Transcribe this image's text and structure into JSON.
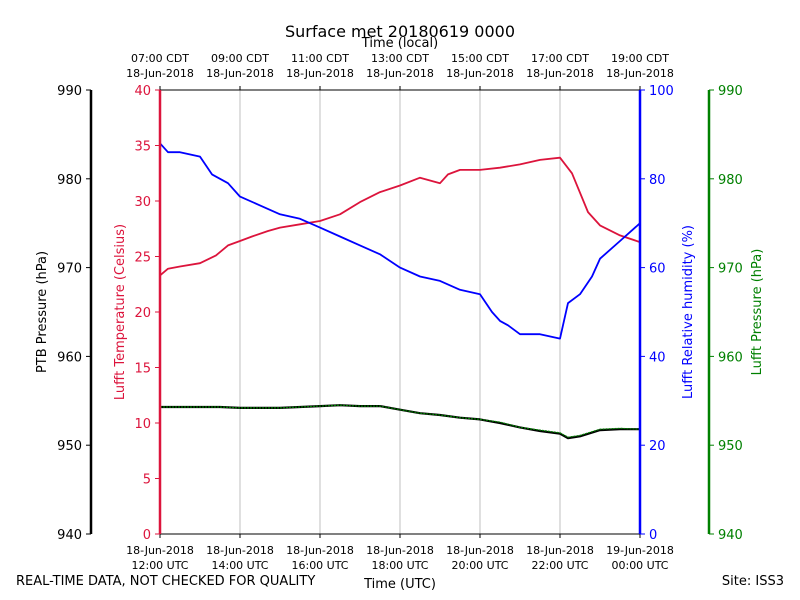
{
  "chart_data": {
    "type": "line",
    "title": "Surface met 20180619 0000",
    "top_axis_label": "Time (local)",
    "xlabel": "Time (UTC)",
    "x_range_hours_utc": [
      12,
      24
    ],
    "x_ticks_utc": [
      {
        "hour": 12,
        "line1": "18-Jun-2018",
        "line2": "12:00 UTC"
      },
      {
        "hour": 14,
        "line1": "18-Jun-2018",
        "line2": "14:00 UTC"
      },
      {
        "hour": 16,
        "line1": "18-Jun-2018",
        "line2": "16:00 UTC"
      },
      {
        "hour": 18,
        "line1": "18-Jun-2018",
        "line2": "18:00 UTC"
      },
      {
        "hour": 20,
        "line1": "18-Jun-2018",
        "line2": "20:00 UTC"
      },
      {
        "hour": 22,
        "line1": "18-Jun-2018",
        "line2": "22:00 UTC"
      },
      {
        "hour": 24,
        "line1": "19-Jun-2018",
        "line2": "00:00 UTC"
      }
    ],
    "x_ticks_local": [
      {
        "hour": 12,
        "line1": "07:00 CDT",
        "line2": "18-Jun-2018"
      },
      {
        "hour": 14,
        "line1": "09:00 CDT",
        "line2": "18-Jun-2018"
      },
      {
        "hour": 16,
        "line1": "11:00 CDT",
        "line2": "18-Jun-2018"
      },
      {
        "hour": 18,
        "line1": "13:00 CDT",
        "line2": "18-Jun-2018"
      },
      {
        "hour": 20,
        "line1": "15:00 CDT",
        "line2": "18-Jun-2018"
      },
      {
        "hour": 22,
        "line1": "17:00 CDT",
        "line2": "18-Jun-2018"
      },
      {
        "hour": 24,
        "line1": "19:00 CDT",
        "line2": "18-Jun-2018"
      }
    ],
    "grid": "vertical lines at x ticks",
    "axes": {
      "ptb_pressure": {
        "label": "PTB Pressure (hPa)",
        "range": [
          940,
          990
        ],
        "ticks": [
          940,
          950,
          960,
          970,
          980,
          990
        ],
        "color": "#000000",
        "side": "left-outer"
      },
      "temperature": {
        "label": "Lufft Temperature (Celsius)",
        "range": [
          0,
          40
        ],
        "ticks": [
          0,
          5,
          10,
          15,
          20,
          25,
          30,
          35,
          40
        ],
        "color": "#dc143c",
        "side": "left-inner"
      },
      "humidity": {
        "label": "Lufft Relative humidity (%)",
        "range": [
          0,
          100
        ],
        "ticks": [
          0,
          20,
          40,
          60,
          80,
          100
        ],
        "color": "#0000ff",
        "side": "right-inner"
      },
      "lufft_pressure": {
        "label": "Lufft Pressure (hPa)",
        "range": [
          940,
          990
        ],
        "ticks": [
          940,
          950,
          960,
          970,
          980,
          990
        ],
        "color": "#008000",
        "side": "right-outer"
      }
    },
    "series": [
      {
        "name": "Lufft Temperature",
        "axis": "temperature",
        "color": "#dc143c",
        "x": [
          12.0,
          12.2,
          12.5,
          13.0,
          13.4,
          13.7,
          14.0,
          14.3,
          14.7,
          15.0,
          15.5,
          16.0,
          16.5,
          17.0,
          17.5,
          18.0,
          18.5,
          19.0,
          19.2,
          19.5,
          20.0,
          20.5,
          21.0,
          21.5,
          22.0,
          22.3,
          22.7,
          23.0,
          23.5,
          24.0
        ],
        "values": [
          23.3,
          23.9,
          24.1,
          24.4,
          25.1,
          26.0,
          26.4,
          26.8,
          27.3,
          27.6,
          27.9,
          28.2,
          28.8,
          29.9,
          30.8,
          31.4,
          32.1,
          31.6,
          32.4,
          32.8,
          32.8,
          33.0,
          33.3,
          33.7,
          33.9,
          32.5,
          29.0,
          27.8,
          26.9,
          26.3
        ]
      },
      {
        "name": "Lufft Relative humidity",
        "axis": "humidity",
        "color": "#0000ff",
        "x": [
          12.0,
          12.2,
          12.5,
          13.0,
          13.3,
          13.7,
          14.0,
          14.5,
          15.0,
          15.5,
          16.0,
          16.5,
          17.0,
          17.5,
          18.0,
          18.5,
          19.0,
          19.5,
          20.0,
          20.3,
          20.5,
          20.7,
          21.0,
          21.5,
          22.0,
          22.2,
          22.5,
          22.8,
          23.0,
          23.5,
          24.0
        ],
        "values": [
          88,
          86,
          86,
          85,
          81,
          79,
          76,
          74,
          72,
          71,
          69,
          67,
          65,
          63,
          60,
          58,
          57,
          55,
          54,
          50,
          48,
          47,
          45,
          45,
          44,
          52,
          54,
          58,
          62,
          66,
          70
        ]
      },
      {
        "name": "PTB Pressure",
        "axis": "ptb_pressure",
        "color": "#000000",
        "x": [
          12.0,
          12.5,
          13.0,
          13.5,
          14.0,
          14.5,
          15.0,
          15.5,
          16.0,
          16.5,
          17.0,
          17.5,
          18.0,
          18.5,
          19.0,
          19.5,
          20.0,
          20.5,
          21.0,
          21.5,
          22.0,
          22.2,
          22.5,
          23.0,
          23.5,
          24.0
        ],
        "values": [
          954.3,
          954.3,
          954.3,
          954.3,
          954.2,
          954.2,
          954.2,
          954.3,
          954.4,
          954.5,
          954.4,
          954.4,
          954.0,
          953.6,
          953.4,
          953.1,
          952.9,
          952.5,
          952.0,
          951.6,
          951.3,
          950.8,
          951.0,
          951.7,
          951.8,
          951.8
        ]
      },
      {
        "name": "Lufft Pressure",
        "axis": "lufft_pressure",
        "color": "#008000",
        "x": [
          12.0,
          12.5,
          13.0,
          13.5,
          14.0,
          14.5,
          15.0,
          15.5,
          16.0,
          16.5,
          17.0,
          17.5,
          18.0,
          18.5,
          19.0,
          19.5,
          20.0,
          20.5,
          21.0,
          21.5,
          22.0,
          22.2,
          22.5,
          23.0,
          23.5,
          24.0
        ],
        "values": [
          954.3,
          954.3,
          954.3,
          954.3,
          954.2,
          954.2,
          954.2,
          954.3,
          954.4,
          954.5,
          954.4,
          954.4,
          954.0,
          953.6,
          953.4,
          953.1,
          952.9,
          952.6,
          952.0,
          951.7,
          951.4,
          950.9,
          951.1,
          951.8,
          951.9,
          951.8
        ]
      }
    ]
  },
  "footer": {
    "left": "REAL-TIME DATA, NOT CHECKED FOR QUALITY",
    "right": "Site: ISS3"
  }
}
